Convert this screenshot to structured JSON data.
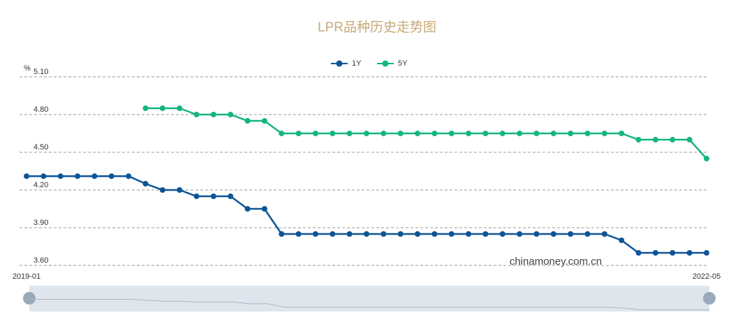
{
  "chart_data": {
    "type": "line",
    "title": "LPR品种历史走势图",
    "y_label": "%",
    "watermark": "chinamoney.com.cn",
    "categories": [
      "2019-01",
      null,
      null,
      null,
      null,
      null,
      null,
      null,
      null,
      null,
      null,
      null,
      null,
      null,
      null,
      null,
      null,
      null,
      null,
      null,
      null,
      null,
      null,
      null,
      null,
      null,
      null,
      null,
      null,
      null,
      null,
      null,
      null,
      null,
      null,
      null,
      null,
      null,
      null,
      null,
      "2022-05"
    ],
    "series": [
      {
        "name": "1Y",
        "color": "#0c5596",
        "values": [
          4.31,
          4.31,
          4.31,
          4.31,
          4.31,
          4.31,
          4.31,
          4.25,
          4.2,
          4.2,
          4.15,
          4.15,
          4.15,
          4.05,
          4.05,
          3.85,
          3.85,
          3.85,
          3.85,
          3.85,
          3.85,
          3.85,
          3.85,
          3.85,
          3.85,
          3.85,
          3.85,
          3.85,
          3.85,
          3.85,
          3.85,
          3.85,
          3.85,
          3.85,
          3.85,
          3.8,
          3.7,
          3.7,
          3.7,
          3.7,
          3.7
        ]
      },
      {
        "name": "5Y",
        "color": "#14b67c",
        "values": [
          null,
          null,
          null,
          null,
          null,
          null,
          null,
          4.85,
          4.85,
          4.85,
          4.8,
          4.8,
          4.8,
          4.75,
          4.75,
          4.65,
          4.65,
          4.65,
          4.65,
          4.65,
          4.65,
          4.65,
          4.65,
          4.65,
          4.65,
          4.65,
          4.65,
          4.65,
          4.65,
          4.65,
          4.65,
          4.65,
          4.65,
          4.65,
          4.65,
          4.65,
          4.6,
          4.6,
          4.6,
          4.6,
          4.45
        ]
      }
    ],
    "ylim": [
      3.6,
      5.1
    ],
    "yticks": [
      {
        "value": 3.6,
        "label": "3.60"
      },
      {
        "value": 3.9,
        "label": "3.90"
      },
      {
        "value": 4.2,
        "label": "4.20"
      },
      {
        "value": 4.5,
        "label": "4.50"
      },
      {
        "value": 4.8,
        "label": "4.80"
      },
      {
        "value": 5.1,
        "label": "5.10"
      }
    ],
    "grid": true,
    "legend": "top"
  }
}
